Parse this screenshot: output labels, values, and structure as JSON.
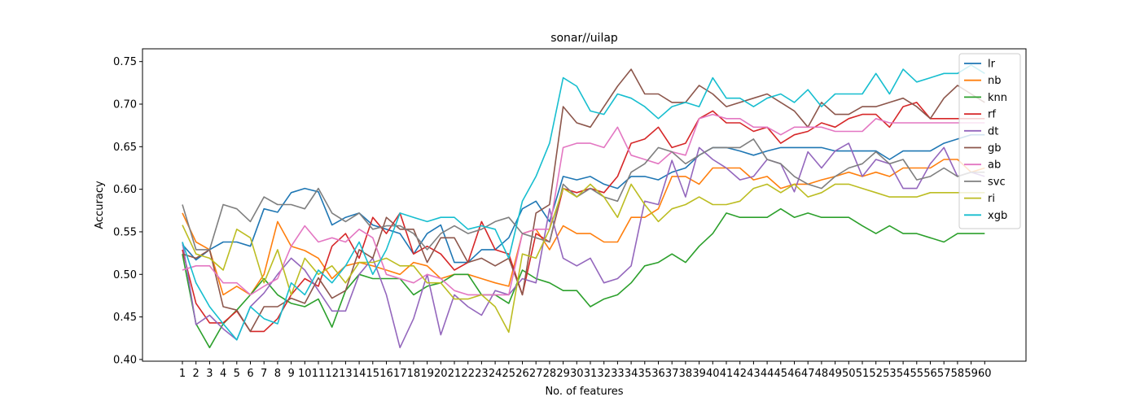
{
  "chart_data": {
    "type": "line",
    "title": "sonar//uilap",
    "xlabel": "No. of features",
    "ylabel": "Accuracy",
    "x": [
      1,
      2,
      3,
      4,
      5,
      6,
      7,
      8,
      9,
      10,
      11,
      12,
      13,
      14,
      15,
      16,
      17,
      18,
      19,
      20,
      21,
      22,
      23,
      24,
      25,
      26,
      27,
      28,
      29,
      30,
      31,
      32,
      33,
      34,
      35,
      36,
      37,
      38,
      39,
      40,
      41,
      42,
      43,
      44,
      45,
      46,
      47,
      48,
      49,
      50,
      51,
      52,
      53,
      54,
      55,
      56,
      57,
      58,
      59,
      60
    ],
    "x_tick_labels": [
      "1",
      "2",
      "3",
      "4",
      "5",
      "6",
      "7",
      "8",
      "9",
      "10",
      "11",
      "12",
      "13",
      "14",
      "15",
      "16",
      "17",
      "18",
      "19",
      "20",
      "21",
      "22",
      "23",
      "24",
      "25",
      "26",
      "27",
      "28",
      "29",
      "30",
      "31",
      "32",
      "33",
      "34",
      "35",
      "36",
      "37",
      "38",
      "39",
      "40",
      "41",
      "42",
      "43",
      "44",
      "45",
      "46",
      "47",
      "48",
      "49",
      "50",
      "51",
      "52",
      "53",
      "54",
      "55",
      "56",
      "57",
      "58",
      "59",
      "60"
    ],
    "ylim": [
      0.398,
      0.765
    ],
    "y_ticks": [
      0.4,
      0.45,
      0.5,
      0.55,
      0.6,
      0.65,
      0.7,
      0.75
    ],
    "y_tick_labels": [
      "0.40",
      "0.45",
      "0.50",
      "0.55",
      "0.60",
      "0.65",
      "0.70",
      "0.75"
    ],
    "grid": false,
    "legend_position": "top-right",
    "series": [
      {
        "name": "lr",
        "color": "#1f77b4",
        "values": [
          0.535,
          0.517,
          0.529,
          0.538,
          0.538,
          0.533,
          0.577,
          0.573,
          0.596,
          0.601,
          0.597,
          0.558,
          0.567,
          0.572,
          0.558,
          0.553,
          0.548,
          0.524,
          0.548,
          0.558,
          0.514,
          0.514,
          0.529,
          0.529,
          0.543,
          0.577,
          0.586,
          0.562,
          0.615,
          0.611,
          0.615,
          0.606,
          0.601,
          0.615,
          0.615,
          0.611,
          0.62,
          0.625,
          0.64,
          0.649,
          0.649,
          0.645,
          0.64,
          0.645,
          0.649,
          0.649,
          0.649,
          0.649,
          0.645,
          0.645,
          0.645,
          0.645,
          0.635,
          0.645,
          0.645,
          0.645,
          0.654,
          0.659,
          0.664,
          0.664
        ]
      },
      {
        "name": "nb",
        "color": "#ff7f0e",
        "values": [
          0.572,
          0.538,
          0.529,
          0.476,
          0.486,
          0.476,
          0.5,
          0.562,
          0.533,
          0.528,
          0.519,
          0.495,
          0.51,
          0.514,
          0.51,
          0.505,
          0.5,
          0.514,
          0.51,
          0.495,
          0.5,
          0.5,
          0.495,
          0.49,
          0.486,
          0.548,
          0.553,
          0.529,
          0.557,
          0.548,
          0.548,
          0.538,
          0.538,
          0.567,
          0.567,
          0.577,
          0.615,
          0.615,
          0.606,
          0.625,
          0.625,
          0.625,
          0.611,
          0.615,
          0.601,
          0.606,
          0.606,
          0.611,
          0.615,
          0.62,
          0.615,
          0.62,
          0.615,
          0.625,
          0.625,
          0.625,
          0.635,
          0.635,
          0.62,
          0.625
        ]
      },
      {
        "name": "knn",
        "color": "#2ca02c",
        "values": [
          0.524,
          0.442,
          0.414,
          0.442,
          0.458,
          0.476,
          0.495,
          0.476,
          0.466,
          0.462,
          0.471,
          0.438,
          0.481,
          0.5,
          0.495,
          0.495,
          0.495,
          0.476,
          0.486,
          0.49,
          0.5,
          0.5,
          0.476,
          0.476,
          0.466,
          0.505,
          0.495,
          0.49,
          0.481,
          0.481,
          0.462,
          0.471,
          0.476,
          0.49,
          0.51,
          0.514,
          0.524,
          0.514,
          0.533,
          0.548,
          0.572,
          0.567,
          0.567,
          0.567,
          0.577,
          0.567,
          0.572,
          0.567,
          0.567,
          0.567,
          0.557,
          0.548,
          0.557,
          0.548,
          0.548,
          0.543,
          0.538,
          0.548,
          0.548,
          0.548
        ]
      },
      {
        "name": "rf",
        "color": "#d62728",
        "values": [
          0.529,
          0.466,
          0.443,
          0.443,
          0.457,
          0.433,
          0.433,
          0.448,
          0.476,
          0.495,
          0.486,
          0.533,
          0.548,
          0.519,
          0.567,
          0.548,
          0.572,
          0.524,
          0.533,
          0.524,
          0.505,
          0.514,
          0.562,
          0.529,
          0.524,
          0.476,
          0.548,
          0.538,
          0.601,
          0.596,
          0.601,
          0.596,
          0.615,
          0.654,
          0.659,
          0.673,
          0.649,
          0.654,
          0.683,
          0.692,
          0.678,
          0.678,
          0.668,
          0.673,
          0.654,
          0.664,
          0.668,
          0.678,
          0.673,
          0.683,
          0.688,
          0.688,
          0.673,
          0.697,
          0.702,
          0.683,
          0.683,
          0.683,
          0.683,
          0.683
        ]
      },
      {
        "name": "dt",
        "color": "#9467bd",
        "values": [
          0.538,
          0.441,
          0.452,
          0.436,
          0.423,
          0.462,
          0.478,
          0.5,
          0.519,
          0.505,
          0.481,
          0.457,
          0.457,
          0.5,
          0.519,
          0.476,
          0.414,
          0.448,
          0.5,
          0.429,
          0.476,
          0.462,
          0.452,
          0.481,
          0.476,
          0.495,
          0.49,
          0.577,
          0.519,
          0.51,
          0.519,
          0.49,
          0.495,
          0.51,
          0.586,
          0.582,
          0.634,
          0.591,
          0.649,
          0.635,
          0.625,
          0.611,
          0.615,
          0.635,
          0.63,
          0.597,
          0.644,
          0.625,
          0.645,
          0.654,
          0.615,
          0.635,
          0.63,
          0.601,
          0.601,
          0.63,
          0.649,
          0.615,
          0.62,
          0.615
        ]
      },
      {
        "name": "gb",
        "color": "#8c564b",
        "values": [
          0.524,
          0.519,
          0.529,
          0.462,
          0.458,
          0.433,
          0.462,
          0.462,
          0.472,
          0.466,
          0.496,
          0.472,
          0.481,
          0.529,
          0.519,
          0.567,
          0.553,
          0.553,
          0.514,
          0.543,
          0.543,
          0.514,
          0.519,
          0.51,
          0.519,
          0.476,
          0.572,
          0.582,
          0.697,
          0.678,
          0.673,
          0.697,
          0.721,
          0.741,
          0.712,
          0.712,
          0.702,
          0.702,
          0.722,
          0.712,
          0.697,
          0.702,
          0.707,
          0.712,
          0.702,
          0.692,
          0.673,
          0.702,
          0.688,
          0.688,
          0.697,
          0.697,
          0.702,
          0.707,
          0.697,
          0.683,
          0.707,
          0.722,
          0.712,
          0.702
        ]
      },
      {
        "name": "ab",
        "color": "#e377c2",
        "values": [
          0.505,
          0.51,
          0.51,
          0.49,
          0.49,
          0.476,
          0.486,
          0.495,
          0.533,
          0.557,
          0.538,
          0.543,
          0.538,
          0.553,
          0.543,
          0.5,
          0.495,
          0.49,
          0.5,
          0.495,
          0.481,
          0.476,
          0.476,
          0.476,
          0.476,
          0.548,
          0.553,
          0.553,
          0.649,
          0.654,
          0.654,
          0.649,
          0.673,
          0.64,
          0.635,
          0.63,
          0.644,
          0.64,
          0.683,
          0.688,
          0.683,
          0.683,
          0.673,
          0.673,
          0.664,
          0.673,
          0.673,
          0.673,
          0.668,
          0.668,
          0.668,
          0.683,
          0.678,
          0.678,
          0.678,
          0.678,
          0.678,
          0.678,
          0.678,
          0.678
        ]
      },
      {
        "name": "svc",
        "color": "#7f7f7f",
        "values": [
          0.582,
          0.529,
          0.529,
          0.582,
          0.577,
          0.562,
          0.591,
          0.582,
          0.582,
          0.577,
          0.601,
          0.572,
          0.562,
          0.572,
          0.553,
          0.557,
          0.557,
          0.548,
          0.529,
          0.548,
          0.557,
          0.548,
          0.553,
          0.562,
          0.567,
          0.548,
          0.543,
          0.538,
          0.606,
          0.591,
          0.601,
          0.591,
          0.586,
          0.62,
          0.63,
          0.649,
          0.644,
          0.63,
          0.64,
          0.649,
          0.649,
          0.649,
          0.659,
          0.635,
          0.63,
          0.615,
          0.606,
          0.601,
          0.615,
          0.625,
          0.63,
          0.644,
          0.63,
          0.635,
          0.611,
          0.615,
          0.625,
          0.615,
          0.62,
          0.62
        ]
      },
      {
        "name": "ri",
        "color": "#bcbd22",
        "values": [
          0.558,
          0.524,
          0.519,
          0.505,
          0.553,
          0.543,
          0.49,
          0.529,
          0.476,
          0.519,
          0.5,
          0.51,
          0.49,
          0.514,
          0.514,
          0.519,
          0.51,
          0.51,
          0.49,
          0.49,
          0.471,
          0.471,
          0.476,
          0.462,
          0.432,
          0.524,
          0.519,
          0.553,
          0.601,
          0.591,
          0.606,
          0.591,
          0.567,
          0.606,
          0.582,
          0.562,
          0.577,
          0.582,
          0.591,
          0.582,
          0.582,
          0.586,
          0.601,
          0.606,
          0.596,
          0.606,
          0.591,
          0.596,
          0.606,
          0.606,
          0.601,
          0.596,
          0.591,
          0.591,
          0.591,
          0.596,
          0.596,
          0.596,
          0.596,
          0.596
        ]
      },
      {
        "name": "xgb",
        "color": "#17becf",
        "values": [
          0.538,
          0.49,
          0.462,
          0.442,
          0.423,
          0.462,
          0.448,
          0.442,
          0.49,
          0.476,
          0.505,
          0.49,
          0.51,
          0.538,
          0.5,
          0.529,
          0.572,
          0.567,
          0.562,
          0.567,
          0.567,
          0.553,
          0.557,
          0.553,
          0.519,
          0.586,
          0.615,
          0.654,
          0.731,
          0.721,
          0.692,
          0.688,
          0.712,
          0.707,
          0.697,
          0.683,
          0.697,
          0.702,
          0.697,
          0.731,
          0.707,
          0.707,
          0.697,
          0.707,
          0.712,
          0.702,
          0.717,
          0.697,
          0.712,
          0.712,
          0.712,
          0.736,
          0.712,
          0.741,
          0.726,
          0.731,
          0.736,
          0.736,
          0.746,
          0.736
        ]
      }
    ]
  }
}
